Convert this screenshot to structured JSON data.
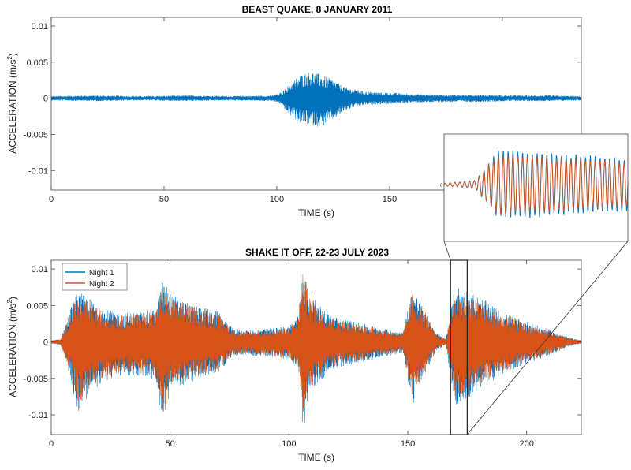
{
  "chart_data": [
    {
      "type": "line",
      "title": "BEAST QUAKE, 8 JANUARY 2011",
      "xlabel": "TIME (s)",
      "ylabel_main": "ACCELERATION (m/s",
      "ylabel_exp": "2",
      "ylabel_tail": ")",
      "xlim": [
        0,
        235
      ],
      "ylim": [
        -0.0127,
        0.0112
      ],
      "xticks": [
        0,
        50,
        100,
        150,
        200
      ],
      "yticks": [
        -0.01,
        -0.005,
        0,
        0.005,
        0.01
      ],
      "xtick_labels": [
        "0",
        "50",
        "100",
        "150",
        "200"
      ],
      "ytick_labels": [
        "-0.01",
        "-0.005",
        "0",
        "0.005",
        "0.01"
      ],
      "grid": false,
      "series": [
        {
          "color": "#0072BD",
          "envelope": {
            "t": [
              0,
              20,
              40,
              60,
              80,
              98,
              102,
              105,
              110,
              115,
              120,
              125,
              130,
              135,
              140,
              150,
              160,
              175,
              190,
              205,
              220,
              235
            ],
            "max": [
              0.0003,
              0.0004,
              0.0003,
              0.0004,
              0.0003,
              0.0004,
              0.0008,
              0.0018,
              0.0032,
              0.0038,
              0.0032,
              0.0026,
              0.0016,
              0.0012,
              0.0009,
              0.0008,
              0.0006,
              0.0005,
              0.0005,
              0.0004,
              0.0004,
              0.0003
            ],
            "min": [
              -0.0003,
              -0.0004,
              -0.0003,
              -0.0004,
              -0.0003,
              -0.0004,
              -0.0008,
              -0.0022,
              -0.0034,
              -0.0038,
              -0.004,
              -0.003,
              -0.0018,
              -0.0012,
              -0.0009,
              -0.0008,
              -0.0006,
              -0.0005,
              -0.0005,
              -0.0004,
              -0.0004,
              -0.0003
            ]
          }
        }
      ]
    },
    {
      "type": "line",
      "title": "SHAKE IT OFF, 22-23 JULY 2023",
      "xlabel": "TIME (s)",
      "ylabel_main": "ACCELERATION (m/s",
      "ylabel_exp": "2",
      "ylabel_tail": ")",
      "xlim": [
        0,
        223
      ],
      "ylim": [
        -0.0127,
        0.0112
      ],
      "xticks": [
        0,
        50,
        100,
        150,
        200
      ],
      "yticks": [
        -0.01,
        -0.005,
        0,
        0.005,
        0.01
      ],
      "xtick_labels": [
        "0",
        "50",
        "100",
        "150",
        "200"
      ],
      "ytick_labels": [
        "-0.01",
        "-0.005",
        "0",
        "0.005",
        "0.01"
      ],
      "grid": false,
      "legend": "top-left",
      "series": [
        {
          "name": "Night 1",
          "color": "#0072BD",
          "envelope": {
            "t": [
              0,
              4,
              8,
              11,
              16,
              22,
              30,
              38,
              44,
              47,
              50,
              55,
              62,
              70,
              76,
              80,
              90,
              100,
              104,
              106,
              108,
              112,
              120,
              130,
              140,
              148,
              150,
              152,
              155,
              158,
              162,
              166,
              170,
              175,
              182,
              190,
              200,
              210,
              218,
              223
            ],
            "max": [
              0.0002,
              0.0004,
              0.0046,
              0.007,
              0.006,
              0.0045,
              0.004,
              0.0042,
              0.0045,
              0.0088,
              0.0068,
              0.0058,
              0.005,
              0.0042,
              0.002,
              0.0016,
              0.0018,
              0.0022,
              0.0038,
              0.011,
              0.0072,
              0.0052,
              0.0034,
              0.0026,
              0.0018,
              0.0014,
              0.0045,
              0.0075,
              0.0058,
              0.0038,
              0.0012,
              0.0004,
              0.0078,
              0.0072,
              0.0058,
              0.004,
              0.0028,
              0.0016,
              0.0006,
              0.0002
            ],
            "min": [
              -0.0002,
              -0.0004,
              -0.0048,
              -0.0098,
              -0.0072,
              -0.0055,
              -0.0046,
              -0.0048,
              -0.0052,
              -0.0115,
              -0.007,
              -0.006,
              -0.0052,
              -0.0042,
              -0.0022,
              -0.0018,
              -0.002,
              -0.0024,
              -0.004,
              -0.0127,
              -0.0078,
              -0.0056,
              -0.0036,
              -0.0028,
              -0.002,
              -0.0016,
              -0.0052,
              -0.009,
              -0.0062,
              -0.004,
              -0.0012,
              -0.0004,
              -0.009,
              -0.008,
              -0.0062,
              -0.0044,
              -0.003,
              -0.0018,
              -0.0006,
              -0.0002
            ]
          }
        },
        {
          "name": "Night 2",
          "color": "#D95319",
          "envelope": {
            "t": [
              0,
              4,
              8,
              11,
              16,
              22,
              30,
              38,
              44,
              47,
              50,
              55,
              62,
              70,
              76,
              80,
              90,
              100,
              104,
              106,
              108,
              112,
              120,
              130,
              140,
              148,
              150,
              152,
              155,
              158,
              162,
              166,
              170,
              175,
              182,
              190,
              200,
              210,
              218,
              223
            ],
            "max": [
              0.0002,
              0.0004,
              0.004,
              0.0062,
              0.0055,
              0.0042,
              0.0036,
              0.0038,
              0.0041,
              0.008,
              0.0062,
              0.0053,
              0.0046,
              0.0038,
              0.0018,
              0.0014,
              0.0016,
              0.002,
              0.0034,
              0.0098,
              0.0066,
              0.0048,
              0.0031,
              0.0024,
              0.0016,
              0.0012,
              0.004,
              0.0068,
              0.0053,
              0.0034,
              0.001,
              0.0004,
              0.0068,
              0.0062,
              0.0052,
              0.0036,
              0.0025,
              0.0014,
              0.0005,
              0.0002
            ],
            "min": [
              -0.0002,
              -0.0004,
              -0.0042,
              -0.0086,
              -0.0064,
              -0.0049,
              -0.0041,
              -0.0043,
              -0.0047,
              -0.0098,
              -0.0063,
              -0.0054,
              -0.0047,
              -0.0038,
              -0.002,
              -0.0016,
              -0.0018,
              -0.0022,
              -0.0036,
              -0.0108,
              -0.007,
              -0.005,
              -0.0032,
              -0.0025,
              -0.0018,
              -0.0014,
              -0.0046,
              -0.0078,
              -0.0056,
              -0.0036,
              -0.001,
              -0.0004,
              -0.0078,
              -0.007,
              -0.0055,
              -0.004,
              -0.0027,
              -0.0016,
              -0.0005,
              -0.0002
            ]
          }
        }
      ],
      "zoom_window": {
        "x": [
          168,
          175
        ],
        "y": [
          -0.0127,
          0.0112
        ]
      }
    }
  ],
  "inset": {
    "zero_label": "0",
    "zoom_of_seconds": [
      168,
      175
    ]
  }
}
